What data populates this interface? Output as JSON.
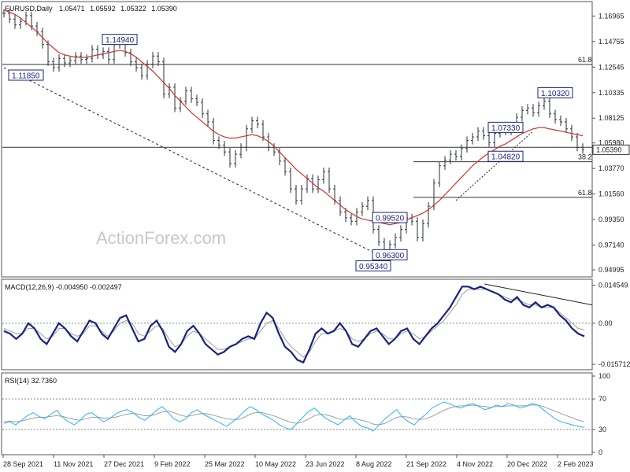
{
  "chart_data": [
    {
      "type": "candlestick",
      "panel": "price",
      "header": {
        "symbol": "EURUSD,Daily",
        "open": "1.05471",
        "high": "1.05592",
        "low": "1.05322",
        "close": "1.05390"
      },
      "ylim": [
        0.9445,
        1.1815
      ],
      "price_ticks": [
        "1.16965",
        "1.14755",
        "1.12545",
        "1.10335",
        "1.08125",
        "1.05980",
        "1.03770",
        "1.01560",
        "0.99350",
        "0.97140",
        "0.94995"
      ],
      "current_price_label": "1.05390",
      "price_path": [
        1.172,
        1.167,
        1.162,
        1.165,
        1.17,
        1.161,
        1.156,
        1.145,
        1.13,
        1.125,
        1.133,
        1.129,
        1.131,
        1.135,
        1.132,
        1.133,
        1.141,
        1.136,
        1.139,
        1.132,
        1.145,
        1.149,
        1.138,
        1.13,
        1.125,
        1.118,
        1.128,
        1.135,
        1.13,
        1.102,
        1.108,
        1.09,
        1.096,
        1.105,
        1.098,
        1.095,
        1.085,
        1.078,
        1.062,
        1.058,
        1.052,
        1.042,
        1.05,
        1.056,
        1.072,
        1.079,
        1.076,
        1.065,
        1.056,
        1.052,
        1.044,
        1.035,
        1.02,
        1.01,
        1.02,
        1.029,
        1.02,
        1.028,
        1.035,
        1.02,
        1.01,
        1.0,
        0.995,
        0.992,
        1.0,
        1.005,
        1.01,
        0.985,
        0.974,
        0.963,
        0.972,
        0.978,
        0.985,
        0.995,
        0.992,
        0.978,
        0.99,
        1.005,
        1.025,
        1.04,
        1.045,
        1.05,
        1.048,
        1.055,
        1.062,
        1.065,
        1.07,
        1.066,
        1.06,
        1.068,
        1.072,
        1.07,
        1.074,
        1.082,
        1.088,
        1.09,
        1.086,
        1.092,
        1.096,
        1.085,
        1.08,
        1.078,
        1.072,
        1.065,
        1.056,
        1.0539
      ],
      "ma_path": [
        1.175,
        1.173,
        1.171,
        1.168,
        1.164,
        1.16,
        1.156,
        1.151,
        1.146,
        1.142,
        1.138,
        1.136,
        1.135,
        1.134,
        1.134,
        1.134,
        1.135,
        1.136,
        1.137,
        1.138,
        1.139,
        1.14,
        1.139,
        1.137,
        1.134,
        1.13,
        1.126,
        1.122,
        1.117,
        1.112,
        1.107,
        1.101,
        1.096,
        1.091,
        1.086,
        1.082,
        1.078,
        1.074,
        1.07,
        1.067,
        1.065,
        1.064,
        1.064,
        1.065,
        1.066,
        1.067,
        1.066,
        1.064,
        1.061,
        1.057,
        1.052,
        1.047,
        1.042,
        1.037,
        1.033,
        1.029,
        1.025,
        1.021,
        1.018,
        1.014,
        1.01,
        1.006,
        1.002,
        0.999,
        0.996,
        0.994,
        0.993,
        0.992,
        0.991,
        0.99,
        0.989,
        0.99,
        0.991,
        0.993,
        0.995,
        0.997,
        0.999,
        1.002,
        1.006,
        1.01,
        1.015,
        1.02,
        1.025,
        1.03,
        1.035,
        1.04,
        1.044,
        1.048,
        1.051,
        1.054,
        1.057,
        1.059,
        1.062,
        1.065,
        1.068,
        1.07,
        1.072,
        1.073,
        1.073,
        1.072,
        1.071,
        1.07,
        1.069,
        1.068,
        1.067,
        1.066
      ],
      "horizontal_lines": [
        {
          "value": 1.1278,
          "label": "61.8"
        },
        {
          "value": 1.056,
          "label": ""
        },
        {
          "value": 1.0435,
          "label": "38.2"
        },
        {
          "value": 1.0127,
          "label": "61.8"
        }
      ],
      "level_labels": [
        {
          "text": "1.14940",
          "value": 1.1494,
          "date_index": 21
        },
        {
          "text": "1.11850",
          "value": 1.1185,
          "date_index": 4
        },
        {
          "text": "1.10320",
          "value": 1.1032,
          "date_index": 100
        },
        {
          "text": "1.07330",
          "value": 1.0733,
          "date_index": 91
        },
        {
          "text": "1.04820",
          "value": 1.0482,
          "date_index": 91
        },
        {
          "text": "0.99520",
          "value": 0.9952,
          "date_index": 70
        },
        {
          "text": "0.96300",
          "value": 0.963,
          "date_index": 70
        },
        {
          "text": "0.95340",
          "value": 0.9534,
          "date_index": 67
        }
      ],
      "trendline_dashed": {
        "from": [
          0,
          1.125
        ],
        "to": [
          70,
          0.958
        ]
      },
      "trendline_support_dotted": {
        "from": [
          82,
          1.01
        ],
        "to": [
          96,
          1.07
        ]
      }
    },
    {
      "type": "line",
      "panel": "macd",
      "title": "MACD(12,26,9) -0.004950 -0.002497",
      "ylim": [
        -0.0175,
        0.0165
      ],
      "ticks": [
        "0.014549",
        "0.00",
        "-0.015712"
      ],
      "macd_path": [
        -0.003,
        -0.004,
        -0.006,
        -0.004,
        0.0,
        -0.002,
        -0.006,
        -0.008,
        -0.004,
        0.0,
        -0.002,
        -0.005,
        -0.007,
        -0.003,
        0.001,
        0.0,
        -0.004,
        -0.006,
        -0.002,
        0.002,
        0.003,
        -0.002,
        -0.007,
        -0.006,
        -0.001,
        0.001,
        -0.003,
        -0.009,
        -0.011,
        -0.008,
        -0.003,
        -0.001,
        -0.004,
        -0.008,
        -0.01,
        -0.012,
        -0.011,
        -0.009,
        -0.008,
        -0.006,
        -0.005,
        -0.006,
        0.0,
        0.004,
        0.002,
        -0.004,
        -0.009,
        -0.011,
        -0.014,
        -0.015,
        -0.01,
        -0.004,
        -0.002,
        -0.004,
        -0.003,
        0.0,
        -0.003,
        -0.008,
        -0.009,
        -0.006,
        -0.003,
        -0.002,
        -0.005,
        -0.008,
        -0.006,
        -0.003,
        -0.002,
        -0.006,
        -0.008,
        -0.005,
        -0.002,
        0.0,
        0.003,
        0.006,
        0.01,
        0.014,
        0.014,
        0.013,
        0.014,
        0.013,
        0.012,
        0.011,
        0.009,
        0.008,
        0.01,
        0.007,
        0.006,
        0.008,
        0.006,
        0.007,
        0.006,
        0.003,
        0.001,
        -0.002,
        -0.004,
        -0.005
      ],
      "signal_path": [
        -0.002,
        -0.003,
        -0.004,
        -0.004,
        -0.002,
        -0.002,
        -0.004,
        -0.006,
        -0.005,
        -0.002,
        -0.002,
        -0.004,
        -0.005,
        -0.004,
        -0.001,
        -0.001,
        -0.003,
        -0.005,
        -0.003,
        0.0,
        0.001,
        0.0,
        -0.004,
        -0.005,
        -0.003,
        -0.001,
        -0.002,
        -0.006,
        -0.009,
        -0.008,
        -0.005,
        -0.003,
        -0.004,
        -0.006,
        -0.008,
        -0.01,
        -0.01,
        -0.009,
        -0.008,
        -0.007,
        -0.006,
        -0.006,
        -0.003,
        0.0,
        0.001,
        -0.002,
        -0.006,
        -0.009,
        -0.011,
        -0.013,
        -0.011,
        -0.007,
        -0.004,
        -0.004,
        -0.003,
        -0.002,
        -0.003,
        -0.006,
        -0.007,
        -0.006,
        -0.004,
        -0.003,
        -0.004,
        -0.006,
        -0.006,
        -0.004,
        -0.003,
        -0.004,
        -0.006,
        -0.005,
        -0.003,
        -0.001,
        0.001,
        0.004,
        0.007,
        0.011,
        0.013,
        0.013,
        0.013,
        0.013,
        0.012,
        0.011,
        0.01,
        0.009,
        0.009,
        0.008,
        0.007,
        0.007,
        0.006,
        0.006,
        0.006,
        0.004,
        0.002,
        0.0,
        -0.002,
        -0.0025
      ],
      "divergence_line": {
        "from": [
          77,
          0.015
        ],
        "to": [
          105,
          0.007
        ]
      }
    },
    {
      "type": "line",
      "panel": "rsi",
      "title": "RSI(14) 32.7360",
      "ylim": [
        0,
        100
      ],
      "ticks": [
        "100",
        "70",
        "30",
        "0"
      ],
      "levels": [
        70,
        30
      ],
      "rsi_path": [
        38,
        40,
        36,
        42,
        48,
        52,
        47,
        44,
        50,
        55,
        46,
        40,
        36,
        42,
        50,
        52,
        46,
        40,
        44,
        50,
        54,
        56,
        52,
        46,
        42,
        48,
        55,
        60,
        52,
        44,
        40,
        44,
        52,
        56,
        50,
        46,
        42,
        38,
        34,
        40,
        46,
        54,
        60,
        56,
        50,
        46,
        42,
        36,
        32,
        30,
        38,
        46,
        54,
        58,
        50,
        44,
        40,
        36,
        42,
        48,
        40,
        34,
        32,
        28,
        36,
        44,
        50,
        56,
        46,
        40,
        36,
        44,
        50,
        58,
        62,
        66,
        64,
        60,
        58,
        62,
        64,
        60,
        56,
        58,
        62,
        60,
        64,
        62,
        58,
        60,
        64,
        62,
        56,
        50,
        44,
        40,
        38,
        36,
        34,
        32.7
      ],
      "overlay_path": [
        40,
        41,
        40,
        41,
        43,
        45,
        46,
        46,
        47,
        48,
        47,
        45,
        43,
        42,
        44,
        46,
        46,
        45,
        45,
        46,
        48,
        50,
        51,
        50,
        48,
        48,
        50,
        53,
        54,
        52,
        49,
        47,
        48,
        50,
        51,
        50,
        48,
        46,
        44,
        43,
        43,
        46,
        50,
        52,
        52,
        50,
        48,
        45,
        42,
        39,
        38,
        40,
        44,
        48,
        50,
        49,
        47,
        44,
        43,
        44,
        44,
        42,
        40,
        37,
        36,
        38,
        42,
        46,
        47,
        46,
        44,
        43,
        44,
        47,
        51,
        55,
        58,
        60,
        61,
        61,
        62,
        61,
        60,
        59,
        60,
        60,
        61,
        61,
        61,
        61,
        62,
        62,
        60,
        57,
        54,
        51,
        48,
        45,
        42,
        40
      ]
    },
    {
      "type": "axis",
      "panel": "dates",
      "x_labels": [
        "28 Sep 2021",
        "11 Nov 2021",
        "27 Dec 2021",
        "9 Feb 2022",
        "25 Mar 2022",
        "10 May 2022",
        "23 Jun 2022",
        "8 Aug 2022",
        "21 Sep 2022",
        "4 Nov 2022",
        "20 Dec 2022",
        "2 Feb 2023"
      ]
    }
  ],
  "watermark": "ActionForex.com",
  "colors": {
    "price": "#263238",
    "ma": "#d32f2f",
    "macd": "#1a237e",
    "signal": "#9e9e9e",
    "rsi": "#29b6f6",
    "rsi_overlay": "#9e9e9e",
    "level": "#1a237e",
    "grid": "#888888"
  }
}
